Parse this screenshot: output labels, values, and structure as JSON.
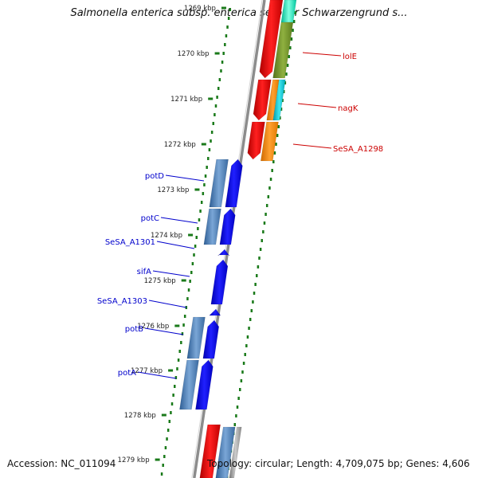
{
  "title": "Salmonella enterica subsp. enterica serovar Schwarzengrund s...",
  "footer": {
    "accession": "Accession: NC_011094",
    "summary": "Topology: circular; Length: 4,709,075 bp; Genes: 4,606"
  },
  "ticks": [
    {
      "label": "1269 kbp",
      "kbp": 1269
    },
    {
      "label": "1270 kbp",
      "kbp": 1270
    },
    {
      "label": "1271 kbp",
      "kbp": 1271
    },
    {
      "label": "1272 kbp",
      "kbp": 1272
    },
    {
      "label": "1273 kbp",
      "kbp": 1273
    },
    {
      "label": "1274 kbp",
      "kbp": 1274
    },
    {
      "label": "1275 kbp",
      "kbp": 1275
    },
    {
      "label": "1276 kbp",
      "kbp": 1276
    },
    {
      "label": "1277 kbp",
      "kbp": 1277
    },
    {
      "label": "1278 kbp",
      "kbp": 1278
    },
    {
      "label": "1279 kbp",
      "kbp": 1279
    }
  ],
  "genes": {
    "forward": [
      {
        "name": "lolE",
        "color": "#cc0000"
      },
      {
        "name": "nagK",
        "color": "#cc0000"
      },
      {
        "name": "SeSA_A1298",
        "color": "#cc0000"
      }
    ],
    "reverse": [
      {
        "name": "potD",
        "color": "#0000cc"
      },
      {
        "name": "potC",
        "color": "#0000cc"
      },
      {
        "name": "SeSA_A1301",
        "color": "#0000cc"
      },
      {
        "name": "sifA",
        "color": "#0000cc"
      },
      {
        "name": "SeSA_A1303",
        "color": "#0000cc"
      },
      {
        "name": "potB",
        "color": "#0000cc"
      },
      {
        "name": "potA",
        "color": "#0000cc"
      }
    ]
  },
  "colors": {
    "tick": "#1a7a1a",
    "backbone": "#8c8c8c",
    "forward_gene": "#ff0000",
    "reverse_gene": "#0000ff",
    "cog_blue": "#4a7ab5",
    "cog_orange": "#ff8c00",
    "cog_olive": "#6b8e23",
    "cog_cyan": "#00c8d2",
    "cog_mint": "#00e0b0"
  }
}
